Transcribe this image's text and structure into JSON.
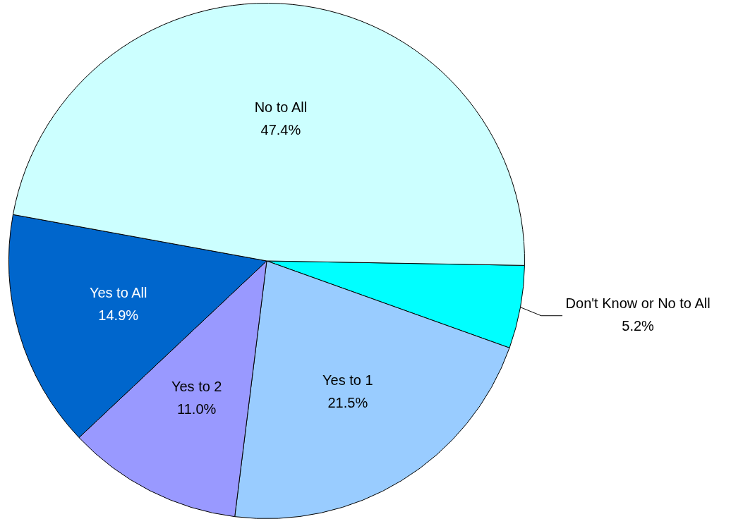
{
  "chart_data": {
    "type": "pie",
    "categories": [
      "Don't Know or No to All",
      "Yes to 1",
      "Yes to 2",
      "Yes to All",
      "No to All"
    ],
    "values": [
      5.2,
      21.5,
      11.0,
      14.9,
      47.4
    ],
    "value_labels": [
      "5.2%",
      "21.5%",
      "11.0%",
      "14.9%",
      "47.4%"
    ],
    "colors": [
      "#00ffff",
      "#99ccff",
      "#9999ff",
      "#0066cc",
      "#ccffff"
    ],
    "legend": false
  }
}
